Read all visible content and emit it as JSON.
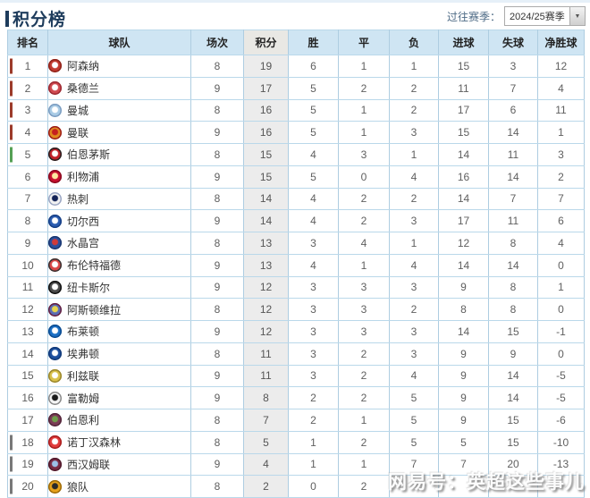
{
  "page": {
    "title": "积分榜"
  },
  "season_selector": {
    "label": "过往赛季：",
    "value": "2024/25赛季",
    "arrow_icon": "▼"
  },
  "watermark": "网易号：英超这些事儿",
  "colors": {
    "accent_navy": "#1e3c5c",
    "header_bg": "#cfe5f3",
    "points_col_bg": "#ececec",
    "border_blue": "#aecde1"
  },
  "table": {
    "headers": [
      "排名",
      "球队",
      "场次",
      "积分",
      "胜",
      "平",
      "负",
      "进球",
      "失球",
      "净胜球"
    ],
    "points_header_index": 3,
    "zone_colors": {
      "champions": "#9c3b2a",
      "europa": "#55a055",
      "relegation": "#787878"
    },
    "rows": [
      {
        "rank": 1,
        "team": "阿森纳",
        "zone": "champions",
        "crest": {
          "bg": "#c23a2f",
          "fg": "#ffffff",
          "ring": "#8f241b"
        },
        "played": 8,
        "points": 19,
        "win": 6,
        "draw": 1,
        "loss": 1,
        "gf": 15,
        "ga": 3,
        "gd": 12
      },
      {
        "rank": 2,
        "team": "桑德兰",
        "zone": "champions",
        "crest": {
          "bg": "#d04a50",
          "fg": "#ffffff",
          "ring": "#9c2a32"
        },
        "played": 9,
        "points": 17,
        "win": 5,
        "draw": 2,
        "loss": 2,
        "gf": 11,
        "ga": 7,
        "gd": 4
      },
      {
        "rank": 3,
        "team": "曼城",
        "zone": "champions",
        "crest": {
          "bg": "#a9cbe5",
          "fg": "#ffffff",
          "ring": "#7b9cc0"
        },
        "played": 8,
        "points": 16,
        "win": 5,
        "draw": 1,
        "loss": 2,
        "gf": 17,
        "ga": 6,
        "gd": 11
      },
      {
        "rank": 4,
        "team": "曼联",
        "zone": "champions",
        "crest": {
          "bg": "#e08a1e",
          "fg": "#c51f1f",
          "ring": "#9c1a1a"
        },
        "played": 9,
        "points": 16,
        "win": 5,
        "draw": 1,
        "loss": 3,
        "gf": 15,
        "ga": 14,
        "gd": 1
      },
      {
        "rank": 5,
        "team": "伯恩茅斯",
        "zone": "europa",
        "crest": {
          "bg": "#c0212a",
          "fg": "#ffffff",
          "ring": "#222222"
        },
        "played": 8,
        "points": 15,
        "win": 4,
        "draw": 3,
        "loss": 1,
        "gf": 14,
        "ga": 11,
        "gd": 3
      },
      {
        "rank": 6,
        "team": "利物浦",
        "zone": null,
        "crest": {
          "bg": "#c8102e",
          "fg": "#ffe9a0",
          "ring": "#8a0b20"
        },
        "played": 9,
        "points": 15,
        "win": 5,
        "draw": 0,
        "loss": 4,
        "gf": 16,
        "ga": 14,
        "gd": 2
      },
      {
        "rank": 7,
        "team": "热刺",
        "zone": null,
        "crest": {
          "bg": "#f2f2f2",
          "fg": "#132257",
          "ring": "#9aa6c4"
        },
        "played": 8,
        "points": 14,
        "win": 4,
        "draw": 2,
        "loss": 2,
        "gf": 14,
        "ga": 7,
        "gd": 7
      },
      {
        "rank": 8,
        "team": "切尔西",
        "zone": null,
        "crest": {
          "bg": "#2b5cb0",
          "fg": "#ffffff",
          "ring": "#173f85"
        },
        "played": 9,
        "points": 14,
        "win": 4,
        "draw": 2,
        "loss": 3,
        "gf": 17,
        "ga": 11,
        "gd": 6
      },
      {
        "rank": 9,
        "team": "水晶宫",
        "zone": null,
        "crest": {
          "bg": "#2a4f9e",
          "fg": "#d03a3a",
          "ring": "#1a3770"
        },
        "played": 8,
        "points": 13,
        "win": 3,
        "draw": 4,
        "loss": 1,
        "gf": 12,
        "ga": 8,
        "gd": 4
      },
      {
        "rank": 10,
        "team": "布伦特福德",
        "zone": null,
        "crest": {
          "bg": "#d94646",
          "fg": "#ffffff",
          "ring": "#333333"
        },
        "played": 9,
        "points": 13,
        "win": 4,
        "draw": 1,
        "loss": 4,
        "gf": 14,
        "ga": 14,
        "gd": 0
      },
      {
        "rank": 11,
        "team": "纽卡斯尔",
        "zone": null,
        "crest": {
          "bg": "#4a4a4a",
          "fg": "#ffffff",
          "ring": "#111111"
        },
        "played": 9,
        "points": 12,
        "win": 3,
        "draw": 3,
        "loss": 3,
        "gf": 9,
        "ga": 8,
        "gd": 1
      },
      {
        "rank": 12,
        "team": "阿斯顿维拉",
        "zone": null,
        "crest": {
          "bg": "#5a6db4",
          "fg": "#e8d44d",
          "ring": "#671f3e"
        },
        "played": 8,
        "points": 12,
        "win": 3,
        "draw": 3,
        "loss": 2,
        "gf": 8,
        "ga": 8,
        "gd": 0
      },
      {
        "rank": 13,
        "team": "布莱顿",
        "zone": null,
        "crest": {
          "bg": "#1b6fc4",
          "fg": "#ffffff",
          "ring": "#0b4a8f"
        },
        "played": 9,
        "points": 12,
        "win": 3,
        "draw": 3,
        "loss": 3,
        "gf": 14,
        "ga": 15,
        "gd": -1
      },
      {
        "rank": 14,
        "team": "埃弗顿",
        "zone": null,
        "crest": {
          "bg": "#1d4f9e",
          "fg": "#ffffff",
          "ring": "#123a78"
        },
        "played": 8,
        "points": 11,
        "win": 3,
        "draw": 2,
        "loss": 3,
        "gf": 9,
        "ga": 9,
        "gd": 0
      },
      {
        "rank": 15,
        "team": "利兹联",
        "zone": null,
        "crest": {
          "bg": "#d9c14a",
          "fg": "#ffffff",
          "ring": "#99862e"
        },
        "played": 9,
        "points": 11,
        "win": 3,
        "draw": 2,
        "loss": 4,
        "gf": 9,
        "ga": 14,
        "gd": -5
      },
      {
        "rank": 16,
        "team": "富勒姆",
        "zone": null,
        "crest": {
          "bg": "#f5f5f5",
          "fg": "#1a1a1a",
          "ring": "#888888"
        },
        "played": 9,
        "points": 8,
        "win": 2,
        "draw": 2,
        "loss": 5,
        "gf": 9,
        "ga": 14,
        "gd": -5
      },
      {
        "rank": 17,
        "team": "伯恩利",
        "zone": null,
        "crest": {
          "bg": "#7a3b55",
          "fg": "#6f9c4a",
          "ring": "#53263a"
        },
        "played": 8,
        "points": 7,
        "win": 2,
        "draw": 1,
        "loss": 5,
        "gf": 9,
        "ga": 15,
        "gd": -6
      },
      {
        "rank": 18,
        "team": "诺丁汉森林",
        "zone": "relegation",
        "crest": {
          "bg": "#e23b3b",
          "fg": "#ffffff",
          "ring": "#a81f1f"
        },
        "played": 8,
        "points": 5,
        "win": 1,
        "draw": 2,
        "loss": 5,
        "gf": 5,
        "ga": 15,
        "gd": -10
      },
      {
        "rank": 19,
        "team": "西汉姆联",
        "zone": "relegation",
        "crest": {
          "bg": "#7a2a43",
          "fg": "#9cc0e8",
          "ring": "#4f1a2c"
        },
        "played": 9,
        "points": 4,
        "win": 1,
        "draw": 1,
        "loss": 7,
        "gf": 7,
        "ga": 20,
        "gd": -13
      },
      {
        "rank": 20,
        "team": "狼队",
        "zone": "relegation",
        "crest": {
          "bg": "#e8a21a",
          "fg": "#2a2a2a",
          "ring": "#9c6b0a"
        },
        "played": 8,
        "points": 2,
        "win": 0,
        "draw": 2,
        "loss": "",
        "gf": "",
        "ga": "",
        "gd": ""
      }
    ]
  }
}
